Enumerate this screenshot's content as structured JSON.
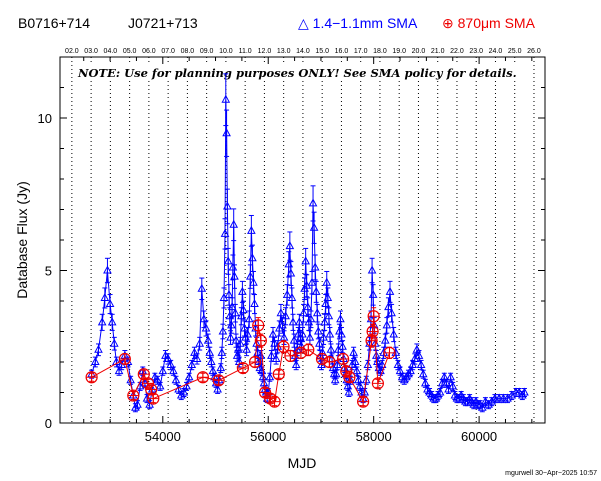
{
  "header": {
    "source_name": "B0716+714",
    "alt_name": "J0721+713",
    "legend_blue": "△ 1.4−1.1mm SMA",
    "legend_red": "⊕ 870μm SMA"
  },
  "note": "NOTE: Use for planning purposes ONLY!  See SMA policy for details.",
  "footer": "mgurwell 30−Apr−2025 10:57",
  "colors": {
    "blue": "#0000ff",
    "red": "#ee0000",
    "axis": "#000000"
  },
  "chart_data": {
    "type": "scatter",
    "xlabel": "MJD",
    "ylabel": "Database Flux (Jy)",
    "xlim": [
      52050,
      61250
    ],
    "ylim": [
      0,
      12
    ],
    "x_ticks": [
      54000,
      56000,
      58000,
      60000
    ],
    "y_ticks": [
      0,
      5,
      10
    ],
    "top_axis_ticks": [
      "02.0",
      "03.0",
      "04.0",
      "05.0",
      "06.0",
      "07.0",
      "08.0",
      "09.0",
      "10.0",
      "11.0",
      "12.0",
      "13.0",
      "14.0",
      "15.0",
      "16.0",
      "17.0",
      "18.0",
      "19.0",
      "20.0",
      "21.0",
      "22.0",
      "23.0",
      "24.0",
      "25.0",
      "26.0"
    ],
    "top_axis_mjd_start": 52275,
    "top_axis_step_days": 365.25,
    "series": [
      {
        "name": "1.4−1.1mm SMA",
        "color": "#0000ff",
        "marker": "triangle",
        "connected": true,
        "points": [
          [
            52650,
            1.6
          ],
          [
            52720,
            2.0
          ],
          [
            52780,
            2.4
          ],
          [
            52850,
            3.3
          ],
          [
            52900,
            4.1
          ],
          [
            52950,
            5.0
          ],
          [
            53000,
            3.9
          ],
          [
            53040,
            3.3
          ],
          [
            53080,
            2.6
          ],
          [
            53120,
            2.0
          ],
          [
            53170,
            1.7
          ],
          [
            53220,
            1.9
          ],
          [
            53280,
            2.2
          ],
          [
            53340,
            2.0
          ],
          [
            53390,
            1.4
          ],
          [
            53440,
            0.9
          ],
          [
            53480,
            0.5
          ],
          [
            53520,
            0.6
          ],
          [
            53570,
            1.2
          ],
          [
            53620,
            1.7
          ],
          [
            53660,
            1.3
          ],
          [
            53700,
            0.8
          ],
          [
            53750,
            0.6
          ],
          [
            53800,
            1.1
          ],
          [
            53850,
            1.5
          ],
          [
            53900,
            1.4
          ],
          [
            53950,
            1.2
          ],
          [
            54000,
            1.7
          ],
          [
            54050,
            2.2
          ],
          [
            54100,
            2.1
          ],
          [
            54150,
            1.9
          ],
          [
            54200,
            1.7
          ],
          [
            54250,
            1.4
          ],
          [
            54300,
            1.1
          ],
          [
            54350,
            0.9
          ],
          [
            54400,
            1.0
          ],
          [
            54450,
            1.2
          ],
          [
            54500,
            1.5
          ],
          [
            54550,
            1.9
          ],
          [
            54600,
            2.3
          ],
          [
            54650,
            2.1
          ],
          [
            54700,
            2.6
          ],
          [
            54740,
            4.4
          ],
          [
            54780,
            3.4
          ],
          [
            54820,
            3.1
          ],
          [
            54860,
            2.7
          ],
          [
            54890,
            2.3
          ],
          [
            54920,
            2.0
          ],
          [
            54950,
            1.7
          ],
          [
            54980,
            1.5
          ],
          [
            55010,
            1.3
          ],
          [
            55040,
            1.1
          ],
          [
            55070,
            1.4
          ],
          [
            55100,
            1.8
          ],
          [
            55120,
            2.3
          ],
          [
            55140,
            3.0
          ],
          [
            55160,
            4.1
          ],
          [
            55180,
            6.2
          ],
          [
            55195,
            10.6
          ],
          [
            55210,
            9.5
          ],
          [
            55225,
            7.1
          ],
          [
            55240,
            5.3
          ],
          [
            55255,
            4.2
          ],
          [
            55270,
            3.5
          ],
          [
            55285,
            2.8
          ],
          [
            55300,
            3.2
          ],
          [
            55315,
            3.8
          ],
          [
            55330,
            5.1
          ],
          [
            55345,
            6.5
          ],
          [
            55360,
            4.8
          ],
          [
            55375,
            3.6
          ],
          [
            55390,
            2.7
          ],
          [
            55410,
            2.2
          ],
          [
            55430,
            2.4
          ],
          [
            55450,
            2.0
          ],
          [
            55470,
            2.6
          ],
          [
            55490,
            3.5
          ],
          [
            55510,
            4.3
          ],
          [
            55530,
            3.7
          ],
          [
            55550,
            3.1
          ],
          [
            55570,
            2.8
          ],
          [
            55590,
            2.4
          ],
          [
            55610,
            2.9
          ],
          [
            55640,
            3.4
          ],
          [
            55660,
            4.8
          ],
          [
            55680,
            6.3
          ],
          [
            55700,
            5.4
          ],
          [
            55720,
            4.6
          ],
          [
            55740,
            3.9
          ],
          [
            55760,
            3.1
          ],
          [
            55780,
            2.6
          ],
          [
            55800,
            2.3
          ],
          [
            55820,
            2.0
          ],
          [
            55840,
            1.8
          ],
          [
            55860,
            2.2
          ],
          [
            55880,
            1.7
          ],
          [
            55900,
            1.5
          ],
          [
            55920,
            1.3
          ],
          [
            55940,
            1.1
          ],
          [
            55960,
            1.0
          ],
          [
            55980,
            0.8
          ],
          [
            56000,
            1.0
          ],
          [
            56030,
            1.5
          ],
          [
            56060,
            2.2
          ],
          [
            56090,
            2.9
          ],
          [
            56120,
            2.6
          ],
          [
            56150,
            2.1
          ],
          [
            56180,
            2.5
          ],
          [
            56210,
            3.1
          ],
          [
            56240,
            3.6
          ],
          [
            56270,
            3.2
          ],
          [
            56300,
            2.8
          ],
          [
            56330,
            3.5
          ],
          [
            56360,
            4.2
          ],
          [
            56390,
            5.2
          ],
          [
            56410,
            5.8
          ],
          [
            56430,
            4.9
          ],
          [
            56450,
            4.1
          ],
          [
            56470,
            3.3
          ],
          [
            56490,
            2.7
          ],
          [
            56510,
            2.2
          ],
          [
            56530,
            1.9
          ],
          [
            56550,
            2.4
          ],
          [
            56570,
            2.9
          ],
          [
            56590,
            3.3
          ],
          [
            56610,
            2.8
          ],
          [
            56630,
            2.5
          ],
          [
            56650,
            2.9
          ],
          [
            56670,
            3.6
          ],
          [
            56690,
            4.4
          ],
          [
            56710,
            5.3
          ],
          [
            56730,
            4.5
          ],
          [
            56750,
            3.8
          ],
          [
            56770,
            3.3
          ],
          [
            56790,
            2.8
          ],
          [
            56810,
            3.4
          ],
          [
            56830,
            4.6
          ],
          [
            56850,
            7.2
          ],
          [
            56870,
            6.4
          ],
          [
            56890,
            5.1
          ],
          [
            56910,
            4.3
          ],
          [
            56930,
            3.6
          ],
          [
            56950,
            3.0
          ],
          [
            56970,
            2.6
          ],
          [
            56990,
            2.2
          ],
          [
            57010,
            1.9
          ],
          [
            57030,
            2.3
          ],
          [
            57050,
            2.8
          ],
          [
            57070,
            3.3
          ],
          [
            57090,
            3.9
          ],
          [
            57110,
            4.6
          ],
          [
            57130,
            4.1
          ],
          [
            57150,
            3.5
          ],
          [
            57170,
            2.9
          ],
          [
            57190,
            2.4
          ],
          [
            57210,
            2.1
          ],
          [
            57230,
            1.8
          ],
          [
            57250,
            1.6
          ],
          [
            57270,
            1.4
          ],
          [
            57290,
            1.6
          ],
          [
            57310,
            1.9
          ],
          [
            57330,
            2.4
          ],
          [
            57350,
            3.0
          ],
          [
            57370,
            3.4
          ],
          [
            57390,
            2.9
          ],
          [
            57410,
            2.5
          ],
          [
            57430,
            2.1
          ],
          [
            57450,
            1.8
          ],
          [
            57470,
            1.6
          ],
          [
            57490,
            1.4
          ],
          [
            57510,
            1.2
          ],
          [
            57530,
            1.0
          ],
          [
            57560,
            1.4
          ],
          [
            57590,
            1.9
          ],
          [
            57620,
            2.3
          ],
          [
            57650,
            2.0
          ],
          [
            57680,
            1.7
          ],
          [
            57710,
            1.4
          ],
          [
            57740,
            1.2
          ],
          [
            57770,
            1.0
          ],
          [
            57800,
            0.8
          ],
          [
            57830,
            1.0
          ],
          [
            57860,
            1.4
          ],
          [
            57890,
            1.9
          ],
          [
            57920,
            2.6
          ],
          [
            57950,
            3.4
          ],
          [
            57970,
            5.0
          ],
          [
            57990,
            4.2
          ],
          [
            58010,
            3.2
          ],
          [
            58030,
            2.6
          ],
          [
            58050,
            2.2
          ],
          [
            58070,
            2.0
          ],
          [
            58100,
            1.8
          ],
          [
            58130,
            1.7
          ],
          [
            58160,
            1.9
          ],
          [
            58190,
            2.3
          ],
          [
            58220,
            2.7
          ],
          [
            58250,
            3.2
          ],
          [
            58280,
            3.8
          ],
          [
            58310,
            4.3
          ],
          [
            58340,
            3.6
          ],
          [
            58380,
            2.9
          ],
          [
            58420,
            2.3
          ],
          [
            58460,
            1.9
          ],
          [
            58500,
            1.7
          ],
          [
            58540,
            1.5
          ],
          [
            58580,
            1.4
          ],
          [
            58620,
            1.5
          ],
          [
            58660,
            1.6
          ],
          [
            58700,
            1.7
          ],
          [
            58740,
            1.9
          ],
          [
            58780,
            2.1
          ],
          [
            58820,
            2.4
          ],
          [
            58860,
            2.2
          ],
          [
            58900,
            1.9
          ],
          [
            58940,
            1.6
          ],
          [
            58980,
            1.3
          ],
          [
            59020,
            1.1
          ],
          [
            59060,
            1.0
          ],
          [
            59100,
            0.9
          ],
          [
            59140,
            0.8
          ],
          [
            59180,
            0.8
          ],
          [
            59220,
            0.9
          ],
          [
            59260,
            1.0
          ],
          [
            59300,
            1.3
          ],
          [
            59340,
            1.5
          ],
          [
            59380,
            1.3
          ],
          [
            59420,
            1.1
          ],
          [
            59460,
            1.5
          ],
          [
            59500,
            1.2
          ],
          [
            59540,
            0.9
          ],
          [
            59580,
            0.8
          ],
          [
            59620,
            0.8
          ],
          [
            59660,
            0.9
          ],
          [
            59700,
            0.8
          ],
          [
            59740,
            0.7
          ],
          [
            59780,
            0.7
          ],
          [
            59820,
            0.8
          ],
          [
            59860,
            0.7
          ],
          [
            59900,
            0.6
          ],
          [
            59940,
            0.7
          ],
          [
            59980,
            0.6
          ],
          [
            60020,
            0.6
          ],
          [
            60060,
            0.5
          ],
          [
            60120,
            0.7
          ],
          [
            60180,
            0.6
          ],
          [
            60240,
            0.7
          ],
          [
            60300,
            0.8
          ],
          [
            60380,
            0.8
          ],
          [
            60460,
            0.8
          ],
          [
            60540,
            0.8
          ],
          [
            60620,
            0.9
          ],
          [
            60700,
            1.0
          ],
          [
            60760,
            1.0
          ],
          [
            60820,
            0.9
          ],
          [
            60860,
            1.0
          ]
        ]
      },
      {
        "name": "870μm SMA",
        "color": "#ee0000",
        "marker": "circle-plus",
        "connected": true,
        "points": [
          [
            52650,
            1.5
          ],
          [
            53280,
            2.1
          ],
          [
            53440,
            0.9
          ],
          [
            53640,
            1.6
          ],
          [
            53720,
            1.3
          ],
          [
            53780,
            1.1
          ],
          [
            53820,
            0.8
          ],
          [
            54760,
            1.5
          ],
          [
            55060,
            1.4
          ],
          [
            55520,
            1.8
          ],
          [
            55750,
            2.0
          ],
          [
            55810,
            3.2
          ],
          [
            55860,
            2.7
          ],
          [
            55940,
            1.0
          ],
          [
            56040,
            0.8
          ],
          [
            56120,
            0.7
          ],
          [
            56200,
            1.6
          ],
          [
            56290,
            2.5
          ],
          [
            56420,
            2.2
          ],
          [
            56620,
            2.3
          ],
          [
            56760,
            2.4
          ],
          [
            57020,
            2.1
          ],
          [
            57160,
            2.0
          ],
          [
            57420,
            2.1
          ],
          [
            57480,
            1.7
          ],
          [
            57540,
            1.5
          ],
          [
            57800,
            0.7
          ],
          [
            57960,
            2.7
          ],
          [
            57980,
            3.0
          ],
          [
            58000,
            3.5
          ],
          [
            58080,
            1.3
          ],
          [
            58300,
            2.3
          ]
        ]
      }
    ]
  }
}
